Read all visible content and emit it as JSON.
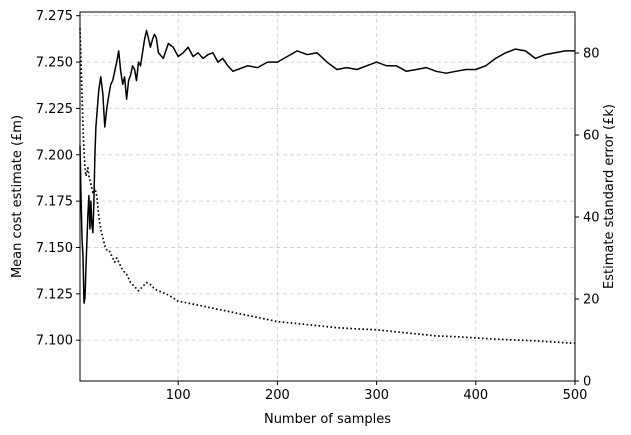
{
  "chart_data": {
    "type": "line",
    "xlabel": "Number of samples",
    "ylabel_left": "Mean cost estimate (£m)",
    "ylabel_right": "Estimate standard error (£k)",
    "xlim": [
      1,
      500
    ],
    "ylim_left": [
      7.078,
      7.277
    ],
    "ylim_right": [
      0,
      90
    ],
    "x_ticks": [
      100,
      200,
      300,
      400,
      500
    ],
    "y_left_ticks": [
      "7.100",
      "7.125",
      "7.150",
      "7.175",
      "7.200",
      "7.225",
      "7.250",
      "7.275"
    ],
    "y_right_ticks": [
      0,
      20,
      40,
      60,
      80
    ],
    "grid": true,
    "series": [
      {
        "axis": "left",
        "style": "solid",
        "x": [
          1,
          2,
          3,
          4,
          5,
          6,
          7,
          8,
          9,
          10,
          11,
          12,
          13,
          14,
          15,
          16,
          17,
          18,
          20,
          22,
          24,
          26,
          28,
          30,
          32,
          34,
          36,
          38,
          40,
          42,
          44,
          46,
          48,
          50,
          52,
          54,
          56,
          58,
          60,
          62,
          64,
          66,
          68,
          70,
          72,
          74,
          76,
          78,
          80,
          85,
          90,
          95,
          100,
          105,
          110,
          115,
          120,
          125,
          130,
          135,
          140,
          145,
          150,
          155,
          160,
          170,
          180,
          190,
          200,
          210,
          220,
          230,
          240,
          250,
          260,
          270,
          280,
          290,
          300,
          310,
          320,
          330,
          340,
          350,
          360,
          370,
          380,
          390,
          400,
          410,
          420,
          430,
          440,
          450,
          460,
          470,
          480,
          490,
          500
        ],
        "values": [
          7.205,
          7.178,
          7.155,
          7.145,
          7.12,
          7.123,
          7.14,
          7.153,
          7.168,
          7.178,
          7.16,
          7.175,
          7.162,
          7.158,
          7.175,
          7.2,
          7.215,
          7.222,
          7.235,
          7.242,
          7.233,
          7.215,
          7.225,
          7.232,
          7.238,
          7.24,
          7.245,
          7.25,
          7.256,
          7.245,
          7.238,
          7.242,
          7.23,
          7.24,
          7.243,
          7.248,
          7.246,
          7.24,
          7.25,
          7.248,
          7.255,
          7.262,
          7.267,
          7.263,
          7.258,
          7.262,
          7.265,
          7.263,
          7.255,
          7.252,
          7.26,
          7.258,
          7.253,
          7.255,
          7.258,
          7.253,
          7.255,
          7.252,
          7.254,
          7.255,
          7.25,
          7.252,
          7.248,
          7.245,
          7.246,
          7.248,
          7.247,
          7.25,
          7.25,
          7.253,
          7.256,
          7.254,
          7.255,
          7.25,
          7.246,
          7.247,
          7.246,
          7.248,
          7.25,
          7.248,
          7.248,
          7.245,
          7.246,
          7.247,
          7.245,
          7.244,
          7.245,
          7.246,
          7.246,
          7.248,
          7.252,
          7.255,
          7.257,
          7.256,
          7.252,
          7.254,
          7.255,
          7.256,
          7.256
        ]
      },
      {
        "axis": "right",
        "style": "dotted",
        "x": [
          1,
          2,
          3,
          4,
          5,
          6,
          7,
          8,
          9,
          10,
          12,
          14,
          16,
          18,
          20,
          22,
          24,
          26,
          28,
          30,
          32,
          34,
          36,
          38,
          40,
          44,
          48,
          52,
          56,
          60,
          64,
          68,
          72,
          76,
          80,
          90,
          100,
          110,
          120,
          130,
          140,
          150,
          160,
          170,
          180,
          190,
          200,
          220,
          240,
          260,
          280,
          300,
          320,
          340,
          360,
          380,
          400,
          420,
          440,
          460,
          480,
          500
        ],
        "values": [
          86,
          78,
          70,
          62,
          56,
          52,
          50,
          51,
          52,
          50,
          48,
          46,
          47,
          45,
          40,
          37,
          35,
          33,
          32,
          32,
          31,
          30,
          29,
          30,
          29,
          27,
          26,
          24,
          23,
          22,
          23,
          24,
          23.5,
          22.5,
          22,
          21,
          19.5,
          19,
          18.5,
          18,
          17.5,
          17,
          16.5,
          16,
          15.5,
          15,
          14.5,
          14,
          13.5,
          13,
          12.7,
          12.5,
          12,
          11.5,
          11,
          10.8,
          10.5,
          10.2,
          10,
          9.8,
          9.5,
          9.2
        ]
      }
    ]
  }
}
